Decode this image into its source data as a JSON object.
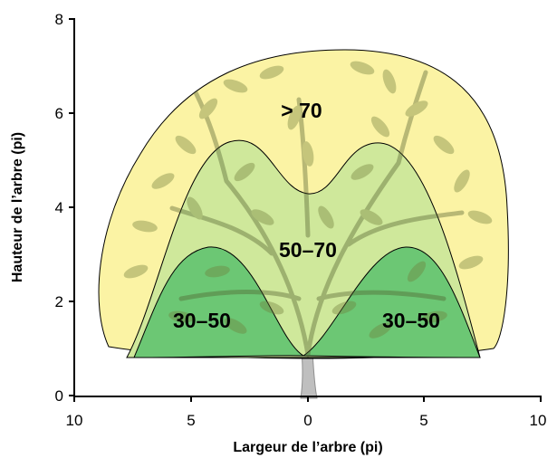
{
  "axes": {
    "x_title": "Largeur de l’arbre (pi)",
    "y_title": "Hauteur de l’arbre (pi)",
    "x_ticks": [
      "10",
      "5",
      "0",
      "5",
      "10"
    ],
    "y_ticks": [
      "0",
      "2",
      "4",
      "6",
      "8"
    ]
  },
  "zones": {
    "outer": {
      "label": "> 70",
      "color": "#fbf3a4"
    },
    "middle": {
      "label": "50–70",
      "color": "#cfe89b"
    },
    "inner_left": {
      "label": "30–50",
      "color": "#6cc774"
    },
    "inner_right": {
      "label": "30–50",
      "color": "#6cc774"
    }
  },
  "icons": {
    "tree": "tree-illustration"
  }
}
